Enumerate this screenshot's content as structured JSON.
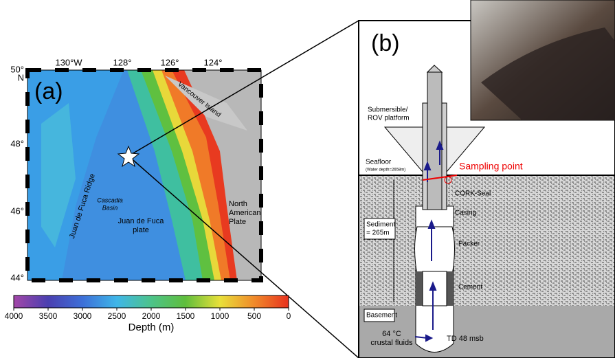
{
  "map": {
    "panel_label": "(a)",
    "lon_labels": [
      "130°W",
      "128°",
      "126°",
      "124°"
    ],
    "lat_labels": [
      [
        "50°",
        "N"
      ],
      [
        "48°"
      ],
      [
        "46°"
      ],
      [
        "44°"
      ]
    ],
    "features": {
      "island": "Vancouver Island",
      "ridge": "Juan de Fuca Ridge",
      "basin": [
        "Cascadia",
        "Basin"
      ],
      "plate": [
        "Juan de Fuca",
        "plate"
      ],
      "continent": [
        "North",
        "American",
        "Plate"
      ]
    }
  },
  "colorbar": {
    "label": "Depth (m)",
    "lim": [
      4000,
      0
    ],
    "ticks": [
      4000,
      3500,
      3000,
      2500,
      2000,
      1500,
      1000,
      500,
      0
    ],
    "colors": [
      "#a347a8",
      "#4a3fb0",
      "#3d6fd8",
      "#3fb6e8",
      "#4cc38a",
      "#5fbe3c",
      "#e8e03a",
      "#f08a2a",
      "#e8321e"
    ]
  },
  "diagram": {
    "panel_label": "(b)",
    "platform": [
      "Submersible/",
      "ROV platform"
    ],
    "sampling": "Sampling point",
    "seafloor": "Seafloor",
    "water_depth": "(Water depth=2658m)",
    "seal": "CORK-Seal",
    "casing": "Casing",
    "sediment": [
      "Sediment",
      "= 265m"
    ],
    "packer": "Packer",
    "cement": "Cement",
    "basement": "Basement",
    "fluids": [
      "64 °C",
      "crustal fluids"
    ],
    "depth": "TD 48 msb"
  }
}
